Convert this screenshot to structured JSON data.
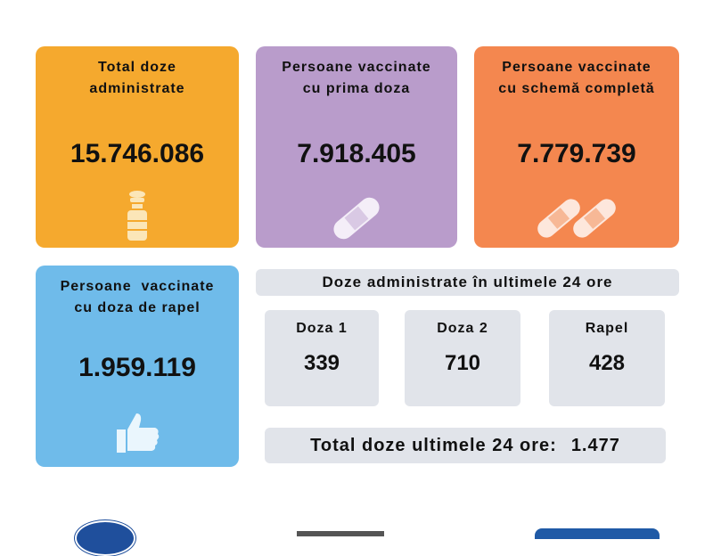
{
  "cards": [
    {
      "title": [
        "Total doze",
        "administrate"
      ],
      "value": "15.746.086",
      "color": "#f5a92e",
      "icon": "vaccine-vial-icon"
    },
    {
      "title": [
        "Persoane vaccinate",
        "cu prima doza"
      ],
      "value": "7.918.405",
      "color": "#b99ccb",
      "icon": "bandage-icon"
    },
    {
      "title": [
        "Persoane vaccinate",
        "cu schemă completă"
      ],
      "value": "7.779.739",
      "color": "#f4874f",
      "icon": "double-bandage-icon"
    },
    {
      "title": [
        "Persoane  vaccinate",
        "cu doza de rapel"
      ],
      "value": "1.959.119",
      "color": "#6fbbea",
      "icon": "thumbs-up-icon"
    }
  ],
  "last24": {
    "header": "Doze administrate în ultimele 24 ore",
    "items": [
      {
        "label": "Doza 1",
        "value": "339"
      },
      {
        "label": "Doza 2",
        "value": "710"
      },
      {
        "label": "Rapel",
        "value": "428"
      }
    ],
    "total_label": "Total doze ultimele 24 ore:",
    "total_value": "1.477"
  }
}
